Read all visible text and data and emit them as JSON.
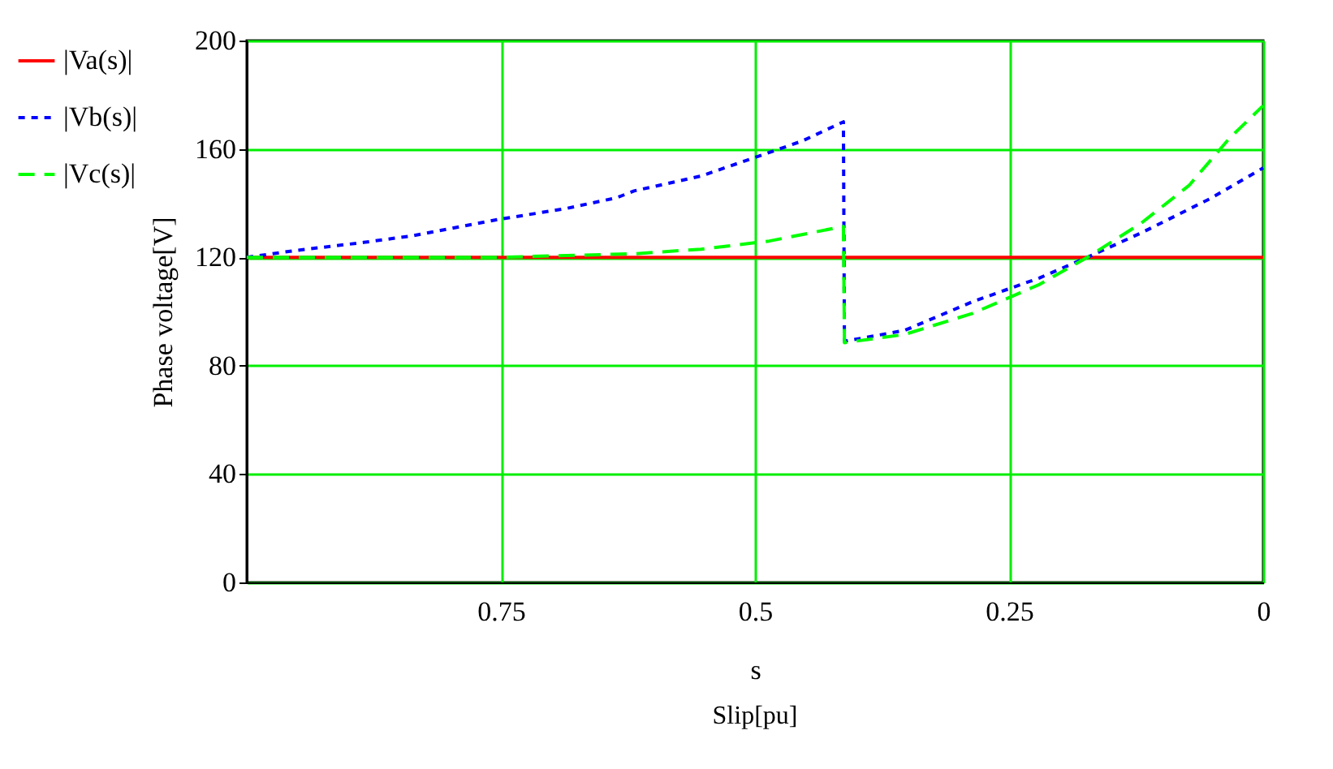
{
  "chart_data": {
    "type": "line",
    "xlabel": "s",
    "ylabel": "Phase voltage[V]",
    "annotations": [
      "Slip[pu]"
    ],
    "xlim": [
      1,
      0
    ],
    "xticks": [
      0.75,
      0.5,
      0.25,
      0
    ],
    "ylim": [
      0,
      200
    ],
    "yticks": [
      0,
      40,
      80,
      120,
      160,
      200
    ],
    "grid": true,
    "legend": "left",
    "series": [
      {
        "name": "|Va(s)|",
        "color": "#ff0000",
        "line_style": "solid",
        "x": [
          1,
          0
        ],
        "values": [
          120,
          120
        ]
      },
      {
        "name": "|Vb(s)|",
        "color": "#0000ff",
        "line_style": "dotted",
        "x": [
          1,
          0.952,
          0.885,
          0.836,
          0.752,
          0.686,
          0.636,
          0.619,
          0.553,
          0.499,
          0.453,
          0.413,
          0.412,
          0.353,
          0.286,
          0.22,
          0.173,
          0.12,
          0.053,
          0
        ],
        "values": [
          120,
          122.5,
          125.5,
          128,
          134,
          138,
          142,
          144.5,
          150,
          157,
          163,
          170,
          89,
          93,
          103.6,
          112.4,
          120,
          129,
          141.5,
          153
        ]
      },
      {
        "name": "|Vc(s)|",
        "color": "#00ff00",
        "line_style": "dashed",
        "x": [
          1,
          0.752,
          0.619,
          0.553,
          0.486,
          0.413,
          0.412,
          0.353,
          0.286,
          0.22,
          0.173,
          0.12,
          0.073,
          0.033,
          0
        ],
        "values": [
          120,
          120,
          121.3,
          123,
          126,
          131.4,
          88.5,
          91.5,
          99.3,
          110,
          120,
          132.6,
          146.5,
          164,
          176
        ]
      }
    ]
  }
}
